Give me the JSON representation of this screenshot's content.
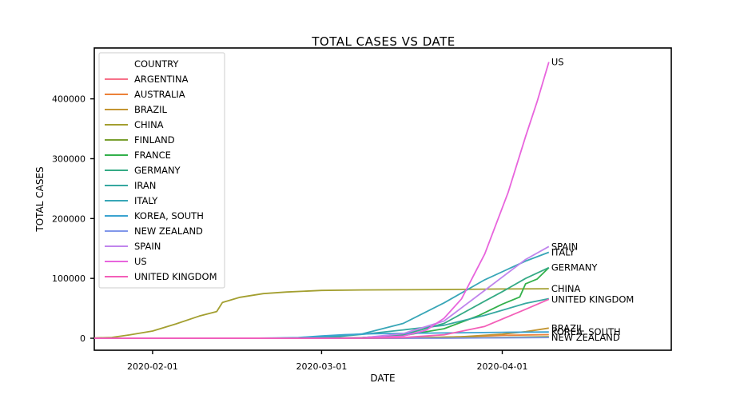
{
  "chart_data": {
    "type": "line",
    "title": "TOTAL CASES VS DATE",
    "xlabel": "DATE",
    "ylabel": "TOTAL CASES",
    "x_start": "2020-01-22",
    "x_ticks": [
      "2020-02-01",
      "2020-03-01",
      "2020-04-01"
    ],
    "y_ticks": [
      0,
      100000,
      200000,
      300000,
      400000
    ],
    "xlim": [
      "2020-01-22",
      "2020-04-30"
    ],
    "ylim": [
      -20000,
      485000
    ],
    "legend_title": "COUNTRY",
    "legend_position": "top-left",
    "grid": false,
    "series": [
      {
        "name": "ARGENTINA",
        "end_label": "",
        "color": "#f77189",
        "points": [
          [
            "2020-01-22",
            0
          ],
          [
            "2020-03-03",
            1
          ],
          [
            "2020-03-15",
            45
          ],
          [
            "2020-03-25",
            500
          ],
          [
            "2020-04-05",
            1450
          ],
          [
            "2020-04-09",
            1800
          ]
        ]
      },
      {
        "name": "AUSTRALIA",
        "end_label": "",
        "color": "#ec8239",
        "points": [
          [
            "2020-01-22",
            0
          ],
          [
            "2020-01-26",
            4
          ],
          [
            "2020-03-01",
            29
          ],
          [
            "2020-03-15",
            300
          ],
          [
            "2020-03-25",
            2400
          ],
          [
            "2020-04-01",
            4900
          ],
          [
            "2020-04-09",
            6100
          ]
        ]
      },
      {
        "name": "BRAZIL",
        "end_label": "BRAZIL",
        "color": "#c39532",
        "points": [
          [
            "2020-01-22",
            0
          ],
          [
            "2020-02-26",
            1
          ],
          [
            "2020-03-15",
            200
          ],
          [
            "2020-03-25",
            2400
          ],
          [
            "2020-04-01",
            6800
          ],
          [
            "2020-04-05",
            11000
          ],
          [
            "2020-04-09",
            17000
          ]
        ]
      },
      {
        "name": "CHINA",
        "end_label": "CHINA",
        "color": "#a39f30",
        "points": [
          [
            "2020-01-22",
            548
          ],
          [
            "2020-01-25",
            1400
          ],
          [
            "2020-01-28",
            5500
          ],
          [
            "2020-02-01",
            12000
          ],
          [
            "2020-02-05",
            24000
          ],
          [
            "2020-02-09",
            37000
          ],
          [
            "2020-02-12",
            44600
          ],
          [
            "2020-02-13",
            59900
          ],
          [
            "2020-02-16",
            68500
          ],
          [
            "2020-02-20",
            74600
          ],
          [
            "2020-02-24",
            77200
          ],
          [
            "2020-03-01",
            79900
          ],
          [
            "2020-03-08",
            80700
          ],
          [
            "2020-03-15",
            81000
          ],
          [
            "2020-03-22",
            81400
          ],
          [
            "2020-04-01",
            82300
          ],
          [
            "2020-04-09",
            82800
          ]
        ]
      },
      {
        "name": "FINLAND",
        "end_label": "",
        "color": "#7aa031",
        "points": [
          [
            "2020-01-22",
            0
          ],
          [
            "2020-01-29",
            1
          ],
          [
            "2020-03-15",
            250
          ],
          [
            "2020-03-25",
            900
          ],
          [
            "2020-04-01",
            1400
          ],
          [
            "2020-04-09",
            2500
          ]
        ]
      },
      {
        "name": "FRANCE",
        "end_label": "",
        "color": "#33b04b",
        "points": [
          [
            "2020-01-22",
            0
          ],
          [
            "2020-01-24",
            2
          ],
          [
            "2020-02-28",
            60
          ],
          [
            "2020-03-08",
            1200
          ],
          [
            "2020-03-15",
            4500
          ],
          [
            "2020-03-22",
            16000
          ],
          [
            "2020-03-28",
            38000
          ],
          [
            "2020-04-01",
            57000
          ],
          [
            "2020-04-04",
            69000
          ],
          [
            "2020-04-05",
            91000
          ],
          [
            "2020-04-07",
            99000
          ],
          [
            "2020-04-09",
            118000
          ]
        ]
      },
      {
        "name": "GERMANY",
        "end_label": "GERMANY",
        "color": "#35aa85",
        "points": [
          [
            "2020-01-22",
            0
          ],
          [
            "2020-01-27",
            1
          ],
          [
            "2020-02-27",
            40
          ],
          [
            "2020-03-08",
            1000
          ],
          [
            "2020-03-15",
            5800
          ],
          [
            "2020-03-22",
            24800
          ],
          [
            "2020-03-29",
            62000
          ],
          [
            "2020-04-01",
            77800
          ],
          [
            "2020-04-05",
            100000
          ],
          [
            "2020-04-09",
            118000
          ]
        ]
      },
      {
        "name": "IRAN",
        "end_label": "",
        "color": "#36a8a0",
        "points": [
          [
            "2020-01-22",
            0
          ],
          [
            "2020-02-19",
            2
          ],
          [
            "2020-02-26",
            139
          ],
          [
            "2020-03-03",
            2336
          ],
          [
            "2020-03-08",
            6566
          ],
          [
            "2020-03-15",
            13938
          ],
          [
            "2020-03-22",
            21638
          ],
          [
            "2020-03-29",
            38309
          ],
          [
            "2020-04-05",
            58226
          ],
          [
            "2020-04-09",
            66220
          ]
        ]
      },
      {
        "name": "ITALY",
        "end_label": "ITALY",
        "color": "#38a6b7",
        "points": [
          [
            "2020-01-22",
            0
          ],
          [
            "2020-01-31",
            2
          ],
          [
            "2020-02-22",
            62
          ],
          [
            "2020-03-01",
            1694
          ],
          [
            "2020-03-08",
            7375
          ],
          [
            "2020-03-15",
            24747
          ],
          [
            "2020-03-22",
            59138
          ],
          [
            "2020-03-29",
            97689
          ],
          [
            "2020-04-05",
            128948
          ],
          [
            "2020-04-09",
            143626
          ]
        ]
      },
      {
        "name": "KOREA, SOUTH",
        "end_label": "KOREA, SOUTH",
        "color": "#3ba3d0",
        "points": [
          [
            "2020-01-22",
            1
          ],
          [
            "2020-02-18",
            31
          ],
          [
            "2020-02-22",
            433
          ],
          [
            "2020-02-26",
            1261
          ],
          [
            "2020-03-01",
            3736
          ],
          [
            "2020-03-05",
            6088
          ],
          [
            "2020-03-10",
            7513
          ],
          [
            "2020-03-15",
            8162
          ],
          [
            "2020-03-22",
            8897
          ],
          [
            "2020-04-01",
            9887
          ],
          [
            "2020-04-09",
            10423
          ]
        ]
      },
      {
        "name": "NEW ZEALAND",
        "end_label": "NEW ZEALAND",
        "color": "#8197ea",
        "points": [
          [
            "2020-01-22",
            0
          ],
          [
            "2020-02-28",
            1
          ],
          [
            "2020-03-15",
            8
          ],
          [
            "2020-03-22",
            102
          ],
          [
            "2020-03-29",
            514
          ],
          [
            "2020-04-05",
            1039
          ],
          [
            "2020-04-09",
            1239
          ]
        ]
      },
      {
        "name": "SPAIN",
        "end_label": "SPAIN",
        "color": "#c085ed",
        "points": [
          [
            "2020-01-22",
            0
          ],
          [
            "2020-02-01",
            1
          ],
          [
            "2020-02-25",
            6
          ],
          [
            "2020-03-01",
            84
          ],
          [
            "2020-03-08",
            673
          ],
          [
            "2020-03-15",
            7798
          ],
          [
            "2020-03-22",
            28768
          ],
          [
            "2020-03-29",
            80110
          ],
          [
            "2020-04-05",
            131646
          ],
          [
            "2020-04-09",
            153222
          ]
        ]
      },
      {
        "name": "US",
        "end_label": "US",
        "color": "#e865dd",
        "points": [
          [
            "2020-01-22",
            1
          ],
          [
            "2020-03-01",
            32
          ],
          [
            "2020-03-08",
            500
          ],
          [
            "2020-03-15",
            3499
          ],
          [
            "2020-03-19",
            13700
          ],
          [
            "2020-03-22",
            33276
          ],
          [
            "2020-03-25",
            65778
          ],
          [
            "2020-03-29",
            140886
          ],
          [
            "2020-04-02",
            243453
          ],
          [
            "2020-04-05",
            337072
          ],
          [
            "2020-04-07",
            396223
          ],
          [
            "2020-04-09",
            461437
          ]
        ]
      },
      {
        "name": "UNITED KINGDOM",
        "end_label": "UNITED KINGDOM",
        "color": "#f35fb8",
        "points": [
          [
            "2020-01-22",
            0
          ],
          [
            "2020-01-31",
            2
          ],
          [
            "2020-03-01",
            36
          ],
          [
            "2020-03-08",
            273
          ],
          [
            "2020-03-15",
            1144
          ],
          [
            "2020-03-22",
            5741
          ],
          [
            "2020-03-29",
            19780
          ],
          [
            "2020-04-05",
            48436
          ],
          [
            "2020-04-09",
            65077
          ]
        ]
      }
    ]
  }
}
